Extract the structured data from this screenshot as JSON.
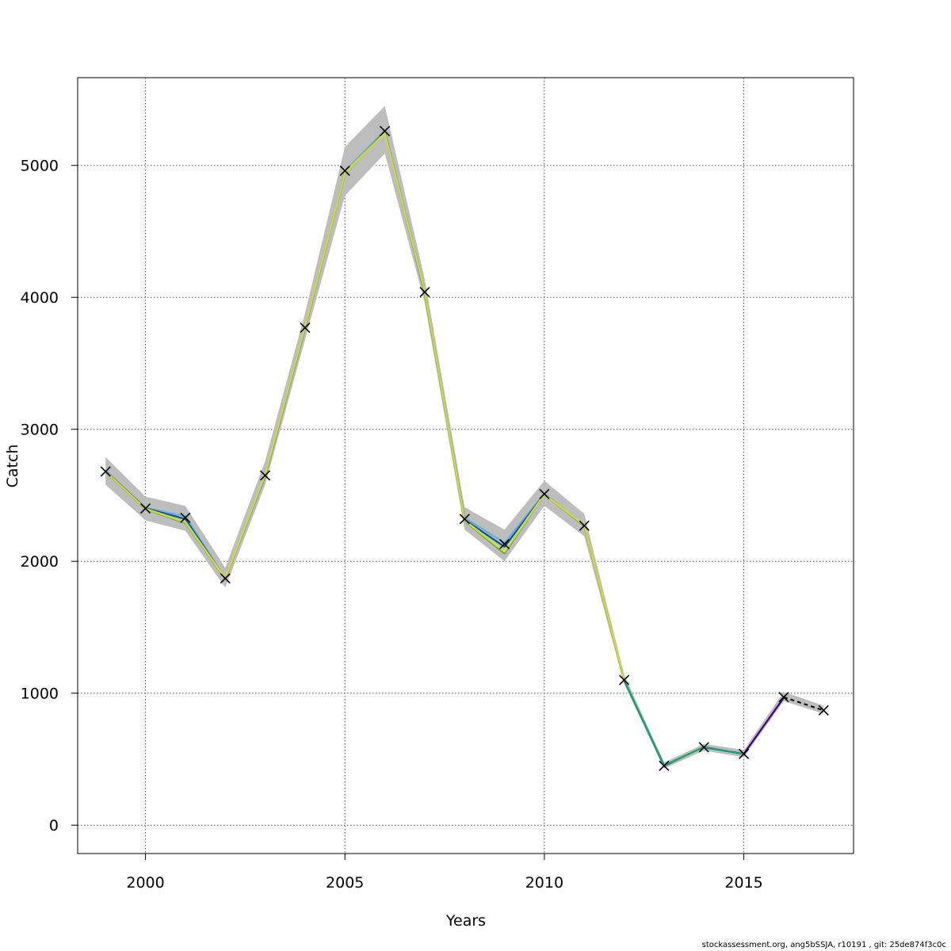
{
  "chart_data": {
    "type": "line",
    "title": "",
    "xlabel": "Years",
    "ylabel": "Catch",
    "xlim": [
      1998.3,
      2017.75
    ],
    "ylim": [
      -215,
      5665
    ],
    "xticks": [
      2000,
      2005,
      2010,
      2015
    ],
    "yticks": [
      0,
      1000,
      2000,
      3000,
      4000,
      5000
    ],
    "grid": true,
    "legend": "none",
    "observed": {
      "x": [
        1999,
        2000,
        2001,
        2002,
        2003,
        2004,
        2005,
        2006,
        2007,
        2008,
        2009,
        2010,
        2011,
        2012,
        2013,
        2014,
        2015,
        2016,
        2017
      ],
      "values": [
        2680,
        2400,
        2330,
        1870,
        2650,
        3770,
        4960,
        5260,
        4040,
        2320,
        2130,
        2510,
        2270,
        1100,
        450,
        590,
        540,
        970,
        870
      ]
    },
    "confidence_band": {
      "x": [
        1999,
        2000,
        2001,
        2002,
        2003,
        2004,
        2005,
        2006,
        2007,
        2008,
        2009,
        2010,
        2011,
        2012,
        2013,
        2014,
        2015,
        2016,
        2017
      ],
      "lower": [
        2580,
        2310,
        2230,
        1800,
        2580,
        3680,
        4770,
        5090,
        3960,
        2240,
        2000,
        2420,
        2190,
        1070,
        430,
        565,
        515,
        940,
        845
      ],
      "upper": [
        2790,
        2490,
        2420,
        1950,
        2760,
        3880,
        5140,
        5450,
        4140,
        2410,
        2240,
        2610,
        2360,
        1140,
        475,
        615,
        570,
        1010,
        905
      ]
    },
    "series": [
      {
        "color": "#6baed6",
        "x": [
          1999,
          2000,
          2001,
          2002,
          2003,
          2004,
          2005,
          2006,
          2007,
          2008,
          2009,
          2010,
          2011,
          2012,
          2013,
          2014,
          2015
        ],
        "values": [
          2685,
          2405,
          2340,
          1870,
          2640,
          3760,
          4955,
          5265,
          4050,
          2330,
          2140,
          2512,
          2270,
          1105,
          450,
          588,
          542
        ]
      },
      {
        "color": "#08519c",
        "x": [
          1999,
          2000,
          2001,
          2002,
          2003,
          2004,
          2005,
          2006,
          2007,
          2008,
          2009,
          2010,
          2011,
          2012,
          2013,
          2014,
          2015
        ],
        "values": [
          2683,
          2402,
          2320,
          1868,
          2648,
          3768,
          4940,
          5255,
          4030,
          2315,
          2110,
          2508,
          2272,
          1100,
          448,
          590,
          540
        ]
      },
      {
        "color": "#b2df8a",
        "x": [
          1999,
          2000,
          2001,
          2002,
          2003,
          2004,
          2005,
          2006,
          2007,
          2008,
          2009,
          2010,
          2011,
          2012,
          2013,
          2014
        ],
        "values": [
          2680,
          2398,
          2300,
          1872,
          2652,
          3772,
          4945,
          5250,
          4038,
          2310,
          2080,
          2507,
          2275,
          1102,
          452,
          585
        ]
      },
      {
        "color": "#33a02c",
        "x": [
          1999,
          2000,
          2001,
          2002,
          2003,
          2004,
          2005,
          2006,
          2007,
          2008,
          2009,
          2010,
          2011,
          2012,
          2013
        ],
        "values": [
          2676,
          2395,
          2290,
          1866,
          2650,
          3770,
          4935,
          5248,
          4042,
          2305,
          2060,
          2505,
          2268,
          1098,
          455
        ]
      },
      {
        "color": "#d9d63a",
        "x": [
          1999,
          2000,
          2001,
          2002,
          2003,
          2004,
          2005,
          2006,
          2007,
          2008,
          2009,
          2010,
          2011,
          2012
        ],
        "values": [
          2678,
          2397,
          2295,
          1869,
          2655,
          3775,
          4938,
          5245,
          4045,
          2308,
          2070,
          2506,
          2272,
          1104
        ]
      },
      {
        "color": "#1b9e77",
        "x": [
          2012,
          2013,
          2014,
          2015
        ],
        "values": [
          1095,
          452,
          592,
          538
        ]
      },
      {
        "color": "#3f007d",
        "x": [
          2015,
          2016
        ],
        "values": [
          540,
          965
        ]
      }
    ],
    "dashed_series": {
      "color": "#000000",
      "x": [
        2016,
        2017
      ],
      "values": [
        970,
        870
      ]
    }
  },
  "footer": "stockassessment.org, ang5bSSJA, r10191 , git: 25de874f3c0c"
}
